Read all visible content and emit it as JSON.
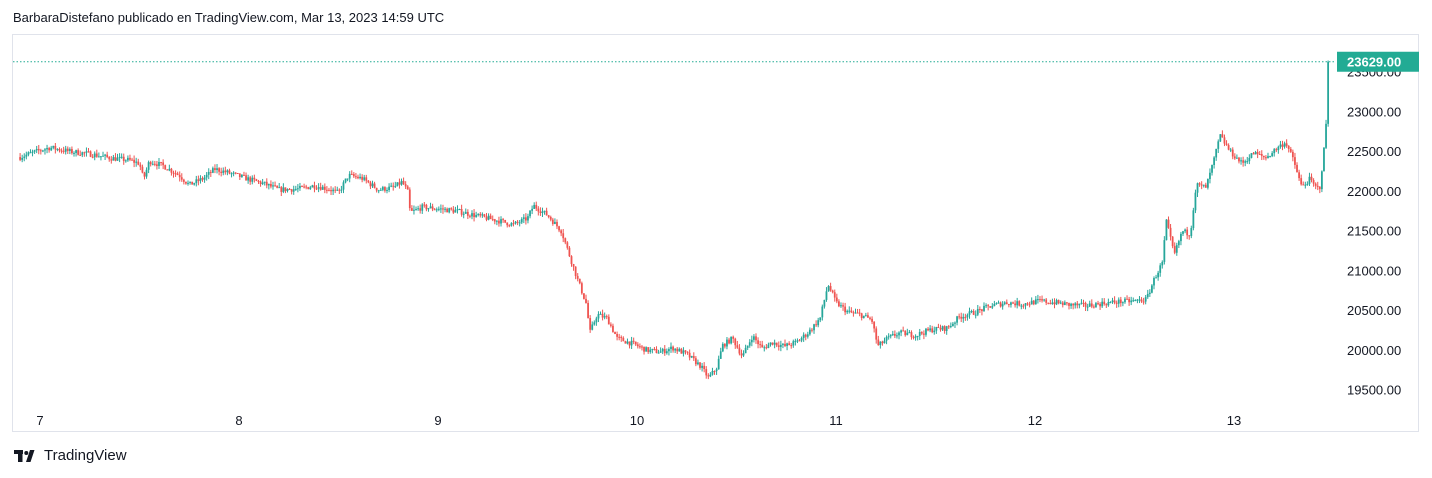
{
  "header": {
    "attribution": "BarbaraDistefano publicado en TradingView.com, Mar 13, 2023 14:59 UTC"
  },
  "footer": {
    "brand": "TradingView",
    "logo_icon": "tradingview-logo-icon"
  },
  "colors": {
    "up": "#26a69a",
    "down": "#ef5350",
    "price_line": "#22ab94",
    "price_badge_bg": "#22ab94",
    "axis_text": "#131722",
    "border": "#e0e3eb"
  },
  "chart_data": {
    "type": "candlestick",
    "title": "",
    "xlabel": "",
    "ylabel": "",
    "ylim": [
      19300,
      23900
    ],
    "y_ticks": [
      "19500.00",
      "20000.00",
      "20500.00",
      "21000.00",
      "21500.00",
      "22000.00",
      "22500.00",
      "23000.00",
      "23500.00"
    ],
    "x_ticks": [
      {
        "label": "7",
        "day": 7
      },
      {
        "label": "8",
        "day": 8
      },
      {
        "label": "9",
        "day": 9
      },
      {
        "label": "10",
        "day": 10
      },
      {
        "label": "11",
        "day": 11
      },
      {
        "label": "12",
        "day": 12
      },
      {
        "label": "13",
        "day": 13
      }
    ],
    "x_range_days": [
      6.89,
      13.48
    ],
    "last_price": 23629.0,
    "last_price_label": "23629.00",
    "price_path": [
      [
        6.9,
        22430
      ],
      [
        6.98,
        22500
      ],
      [
        7.05,
        22550
      ],
      [
        7.15,
        22500
      ],
      [
        7.25,
        22470
      ],
      [
        7.35,
        22420
      ],
      [
        7.45,
        22390
      ],
      [
        7.5,
        22350
      ],
      [
        7.52,
        22150
      ],
      [
        7.55,
        22380
      ],
      [
        7.62,
        22320
      ],
      [
        7.7,
        22200
      ],
      [
        7.75,
        22080
      ],
      [
        7.82,
        22160
      ],
      [
        7.88,
        22280
      ],
      [
        7.95,
        22230
      ],
      [
        8.05,
        22150
      ],
      [
        8.12,
        22100
      ],
      [
        8.2,
        22020
      ],
      [
        8.3,
        22030
      ],
      [
        8.38,
        22070
      ],
      [
        8.45,
        22030
      ],
      [
        8.5,
        21980
      ],
      [
        8.55,
        22200
      ],
      [
        8.62,
        22160
      ],
      [
        8.7,
        22020
      ],
      [
        8.78,
        22050
      ],
      [
        8.82,
        22120
      ],
      [
        8.85,
        21980
      ],
      [
        8.86,
        21730
      ],
      [
        8.92,
        21800
      ],
      [
        9.0,
        21780
      ],
      [
        9.1,
        21750
      ],
      [
        9.18,
        21700
      ],
      [
        9.25,
        21660
      ],
      [
        9.32,
        21620
      ],
      [
        9.38,
        21580
      ],
      [
        9.45,
        21660
      ],
      [
        9.48,
        21820
      ],
      [
        9.55,
        21700
      ],
      [
        9.62,
        21500
      ],
      [
        9.66,
        21200
      ],
      [
        9.7,
        20900
      ],
      [
        9.75,
        20550
      ],
      [
        9.76,
        20200
      ],
      [
        9.8,
        20450
      ],
      [
        9.85,
        20400
      ],
      [
        9.9,
        20150
      ],
      [
        9.98,
        20080
      ],
      [
        10.05,
        20000
      ],
      [
        10.12,
        19980
      ],
      [
        10.18,
        20030
      ],
      [
        10.25,
        19950
      ],
      [
        10.32,
        19800
      ],
      [
        10.36,
        19650
      ],
      [
        10.4,
        19780
      ],
      [
        10.43,
        20060
      ],
      [
        10.48,
        20150
      ],
      [
        10.53,
        19920
      ],
      [
        10.58,
        20180
      ],
      [
        10.63,
        20020
      ],
      [
        10.68,
        20100
      ],
      [
        10.74,
        20050
      ],
      [
        10.8,
        20100
      ],
      [
        10.86,
        20220
      ],
      [
        10.92,
        20400
      ],
      [
        10.96,
        20830
      ],
      [
        11.0,
        20600
      ],
      [
        11.06,
        20480
      ],
      [
        11.12,
        20450
      ],
      [
        11.18,
        20380
      ],
      [
        11.21,
        20050
      ],
      [
        11.26,
        20150
      ],
      [
        11.32,
        20220
      ],
      [
        11.4,
        20190
      ],
      [
        11.48,
        20260
      ],
      [
        11.56,
        20280
      ],
      [
        11.62,
        20420
      ],
      [
        11.7,
        20480
      ],
      [
        11.78,
        20560
      ],
      [
        11.86,
        20600
      ],
      [
        11.94,
        20580
      ],
      [
        12.02,
        20620
      ],
      [
        12.1,
        20600
      ],
      [
        12.18,
        20570
      ],
      [
        12.26,
        20560
      ],
      [
        12.34,
        20590
      ],
      [
        12.42,
        20610
      ],
      [
        12.5,
        20620
      ],
      [
        12.56,
        20640
      ],
      [
        12.6,
        20900
      ],
      [
        12.64,
        21100
      ],
      [
        12.66,
        21620
      ],
      [
        12.7,
        21200
      ],
      [
        12.74,
        21500
      ],
      [
        12.78,
        21460
      ],
      [
        12.81,
        22080
      ],
      [
        12.86,
        22050
      ],
      [
        12.9,
        22400
      ],
      [
        12.93,
        22700
      ],
      [
        12.98,
        22500
      ],
      [
        13.04,
        22350
      ],
      [
        13.1,
        22480
      ],
      [
        13.16,
        22420
      ],
      [
        13.22,
        22550
      ],
      [
        13.26,
        22620
      ],
      [
        13.3,
        22380
      ],
      [
        13.34,
        22050
      ],
      [
        13.38,
        22150
      ],
      [
        13.41,
        22050
      ],
      [
        13.43,
        22030
      ],
      [
        13.45,
        22450
      ],
      [
        13.47,
        23100
      ],
      [
        13.475,
        23629
      ]
    ]
  }
}
